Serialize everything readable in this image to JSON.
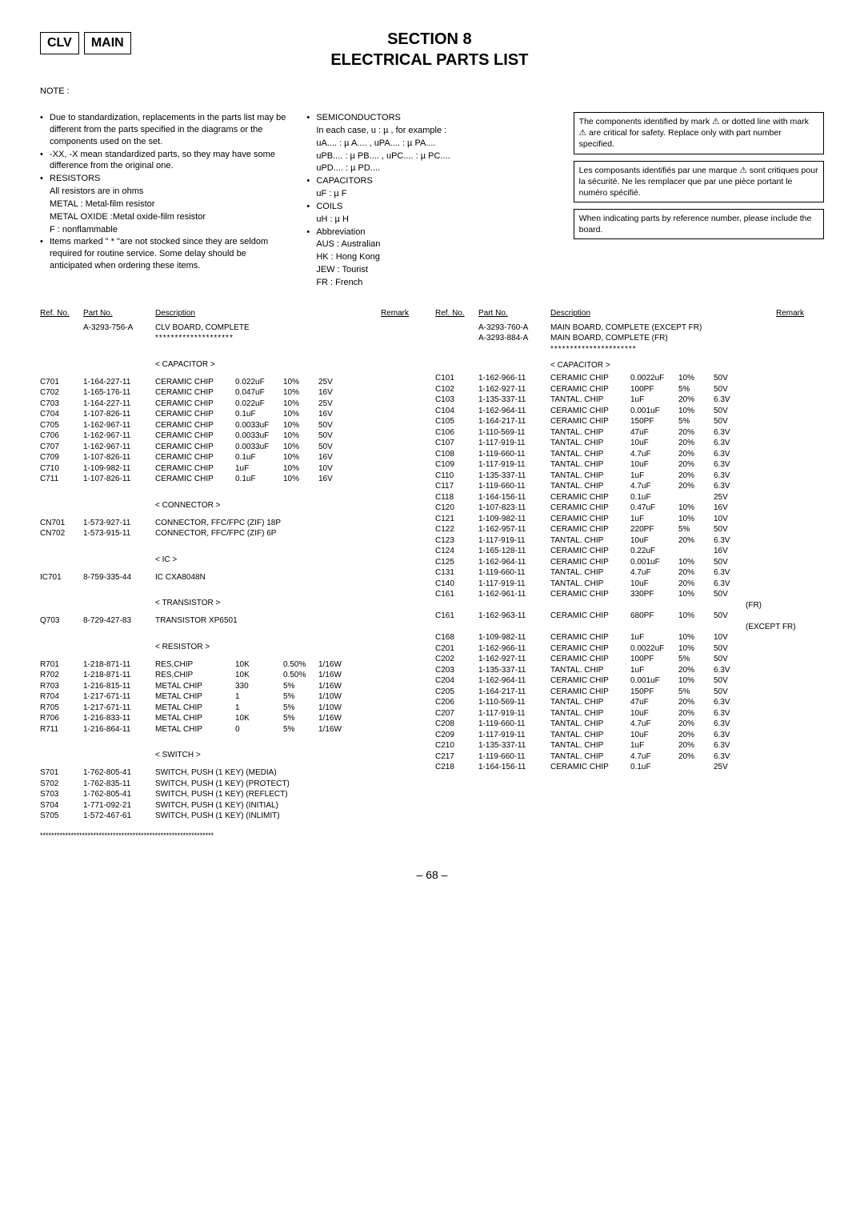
{
  "header": {
    "box1": "CLV",
    "box2": "MAIN",
    "section_line1": "SECTION 8",
    "section_line2": "ELECTRICAL PARTS LIST"
  },
  "notes": {
    "heading": "NOTE :",
    "col1": [
      {
        "bullet": true,
        "text": "Due to standardization, replacements in the parts list may be different from the parts specified in the diagrams or the components used on the set."
      },
      {
        "bullet": true,
        "text": "-XX, -X mean standardized parts, so they may have some difference from the original one."
      },
      {
        "bullet": true,
        "text": "RESISTORS"
      },
      {
        "bullet": false,
        "text": "All resistors are in ohms"
      },
      {
        "bullet": false,
        "text": "METAL : Metal-film resistor"
      },
      {
        "bullet": false,
        "text": "METAL OXIDE :Metal oxide-film resistor"
      },
      {
        "bullet": false,
        "text": "F : nonflammable"
      },
      {
        "bullet": true,
        "text": "Items marked \" * \"are not stocked since they are seldom required for routine service. Some delay should be anticipated when ordering these items."
      }
    ],
    "col2": [
      {
        "bullet": true,
        "text": "SEMICONDUCTORS"
      },
      {
        "bullet": false,
        "text": "In each case, u : µ , for example :"
      },
      {
        "bullet": false,
        "text": "uA.... : µ A.... , uPA.... : µ PA...."
      },
      {
        "bullet": false,
        "text": "uPB.... : µ PB.... , uPC.... : µ PC...."
      },
      {
        "bullet": false,
        "text": "uPD.... : µ PD...."
      },
      {
        "bullet": true,
        "text": "CAPACITORS"
      },
      {
        "bullet": false,
        "text": "uF : µ F"
      },
      {
        "bullet": true,
        "text": "COILS"
      },
      {
        "bullet": false,
        "text": "uH : µ H"
      },
      {
        "bullet": true,
        "text": "Abbreviation"
      },
      {
        "bullet": false,
        "text": "AUS    : Australian"
      },
      {
        "bullet": false,
        "text": "HK       : Hong Kong"
      },
      {
        "bullet": false,
        "text": "JEW    : Tourist"
      },
      {
        "bullet": false,
        "text": "FR        : French"
      }
    ],
    "boxes": [
      "The components identified by mark ⚠ or dotted line with mark ⚠ are critical for safety.\nReplace only with part number specified.",
      "Les composants identifiés par une marque ⚠ sont critiques pour la sécurité. Ne les remplacer que par une pièce portant le numéro spécifié.",
      "When indicating parts by reference number, please include the board."
    ]
  },
  "headers": {
    "ref": "Ref. No.",
    "part": "Part No.",
    "desc": "Description",
    "remark": "Remark"
  },
  "left": {
    "board_pn": "A-3293-756-A",
    "board_desc": "CLV BOARD, COMPLETE",
    "stars": "********************",
    "sections": [
      {
        "label": "< CAPACITOR >",
        "rows": [
          [
            "C701",
            "1-164-227-11",
            "CERAMIC CHIP",
            "0.022uF",
            "10%",
            "25V",
            ""
          ],
          [
            "C702",
            "1-165-176-11",
            "CERAMIC CHIP",
            "0.047uF",
            "10%",
            "16V",
            ""
          ],
          [
            "C703",
            "1-164-227-11",
            "CERAMIC CHIP",
            "0.022uF",
            "10%",
            "25V",
            ""
          ],
          [
            "C704",
            "1-107-826-11",
            "CERAMIC CHIP",
            "0.1uF",
            "10%",
            "16V",
            ""
          ],
          [
            "C705",
            "1-162-967-11",
            "CERAMIC CHIP",
            "0.0033uF",
            "10%",
            "50V",
            ""
          ],
          [
            "",
            "",
            "",
            "",
            "",
            "",
            ""
          ],
          [
            "C706",
            "1-162-967-11",
            "CERAMIC CHIP",
            "0.0033uF",
            "10%",
            "50V",
            ""
          ],
          [
            "C707",
            "1-162-967-11",
            "CERAMIC CHIP",
            "0.0033uF",
            "10%",
            "50V",
            ""
          ],
          [
            "C709",
            "1-107-826-11",
            "CERAMIC CHIP",
            "0.1uF",
            "10%",
            "16V",
            ""
          ],
          [
            "C710",
            "1-109-982-11",
            "CERAMIC CHIP",
            "1uF",
            "10%",
            "10V",
            ""
          ],
          [
            "C711",
            "1-107-826-11",
            "CERAMIC CHIP",
            "0.1uF",
            "10%",
            "16V",
            ""
          ]
        ]
      },
      {
        "label": "< CONNECTOR >",
        "rows": [
          [
            "CN701",
            "1-573-927-11",
            "CONNECTOR, FFC/FPC (ZIF) 18P",
            "",
            "",
            "",
            ""
          ],
          [
            "CN702",
            "1-573-915-11",
            "CONNECTOR, FFC/FPC (ZIF) 6P",
            "",
            "",
            "",
            ""
          ]
        ]
      },
      {
        "label": "< IC >",
        "rows": [
          [
            "IC701",
            "8-759-335-44",
            "IC  CXA8048N",
            "",
            "",
            "",
            ""
          ]
        ]
      },
      {
        "label": "< TRANSISTOR >",
        "rows": [
          [
            "Q703",
            "8-729-427-83",
            "TRANSISTOR  XP6501",
            "",
            "",
            "",
            ""
          ]
        ]
      },
      {
        "label": "< RESISTOR >",
        "rows": [
          [
            "R701",
            "1-218-871-11",
            "RES,CHIP",
            "10K",
            "0.50%",
            "1/16W",
            ""
          ],
          [
            "R702",
            "1-218-871-11",
            "RES,CHIP",
            "10K",
            "0.50%",
            "1/16W",
            ""
          ],
          [
            "R703",
            "1-216-815-11",
            "METAL CHIP",
            "330",
            "5%",
            "1/16W",
            ""
          ],
          [
            "R704",
            "1-217-671-11",
            "METAL CHIP",
            "1",
            "5%",
            "1/10W",
            ""
          ],
          [
            "R705",
            "1-217-671-11",
            "METAL CHIP",
            "1",
            "5%",
            "1/10W",
            ""
          ],
          [
            "",
            "",
            "",
            "",
            "",
            "",
            ""
          ],
          [
            "R706",
            "1-216-833-11",
            "METAL CHIP",
            "10K",
            "5%",
            "1/16W",
            ""
          ],
          [
            "R711",
            "1-216-864-11",
            "METAL CHIP",
            "0",
            "5%",
            "1/16W",
            ""
          ]
        ]
      },
      {
        "label": "< SWITCH >",
        "rows": [
          [
            "S701",
            "1-762-805-41",
            "SWITCH, PUSH (1 KEY) (MEDIA)",
            "",
            "",
            "",
            ""
          ],
          [
            "S702",
            "1-762-835-11",
            "SWITCH, PUSH (1 KEY) (PROTECT)",
            "",
            "",
            "",
            ""
          ],
          [
            "S703",
            "1-762-805-41",
            "SWITCH, PUSH (1 KEY) (REFLECT)",
            "",
            "",
            "",
            ""
          ],
          [
            "S704",
            "1-771-092-21",
            "SWITCH, PUSH (1 KEY) (INITIAL)",
            "",
            "",
            "",
            ""
          ],
          [
            "S705",
            "1-572-467-61",
            "SWITCH, PUSH (1 KEY) (INLIMIT)",
            "",
            "",
            "",
            ""
          ]
        ]
      }
    ],
    "bottom_stars": "**************************************************************"
  },
  "right": {
    "board1_pn": "A-3293-760-A",
    "board1_desc": "MAIN  BOARD, COMPLETE (EXCEPT FR)",
    "board2_pn": "A-3293-884-A",
    "board2_desc": "MAIN  BOARD, COMPLETE (FR)",
    "stars": "**********************",
    "section_label": "< CAPACITOR >",
    "rows": [
      [
        "C101",
        "1-162-966-11",
        "CERAMIC CHIP",
        "0.0022uF",
        "10%",
        "50V",
        ""
      ],
      [
        "C102",
        "1-162-927-11",
        "CERAMIC CHIP",
        "100PF",
        "5%",
        "50V",
        ""
      ],
      [
        "C103",
        "1-135-337-11",
        "TANTAL. CHIP",
        "1uF",
        "20%",
        "6.3V",
        ""
      ],
      [
        "C104",
        "1-162-964-11",
        "CERAMIC CHIP",
        "0.001uF",
        "10%",
        "50V",
        ""
      ],
      [
        "C105",
        "1-164-217-11",
        "CERAMIC CHIP",
        "150PF",
        "5%",
        "50V",
        ""
      ],
      [
        "",
        "",
        "",
        "",
        "",
        "",
        ""
      ],
      [
        "C106",
        "1-110-569-11",
        "TANTAL. CHIP",
        "47uF",
        "20%",
        "6.3V",
        ""
      ],
      [
        "C107",
        "1-117-919-11",
        "TANTAL. CHIP",
        "10uF",
        "20%",
        "6.3V",
        ""
      ],
      [
        "C108",
        "1-119-660-11",
        "TANTAL. CHIP",
        "4.7uF",
        "20%",
        "6.3V",
        ""
      ],
      [
        "C109",
        "1-117-919-11",
        "TANTAL. CHIP",
        "10uF",
        "20%",
        "6.3V",
        ""
      ],
      [
        "C110",
        "1-135-337-11",
        "TANTAL. CHIP",
        "1uF",
        "20%",
        "6.3V",
        ""
      ],
      [
        "",
        "",
        "",
        "",
        "",
        "",
        ""
      ],
      [
        "C117",
        "1-119-660-11",
        "TANTAL. CHIP",
        "4.7uF",
        "20%",
        "6.3V",
        ""
      ],
      [
        "C118",
        "1-164-156-11",
        "CERAMIC CHIP",
        "0.1uF",
        "",
        "25V",
        ""
      ],
      [
        "C120",
        "1-107-823-11",
        "CERAMIC CHIP",
        "0.47uF",
        "10%",
        "16V",
        ""
      ],
      [
        "C121",
        "1-109-982-11",
        "CERAMIC CHIP",
        "1uF",
        "10%",
        "10V",
        ""
      ],
      [
        "C122",
        "1-162-957-11",
        "CERAMIC CHIP",
        "220PF",
        "5%",
        "50V",
        ""
      ],
      [
        "",
        "",
        "",
        "",
        "",
        "",
        ""
      ],
      [
        "C123",
        "1-117-919-11",
        "TANTAL. CHIP",
        "10uF",
        "20%",
        "6.3V",
        ""
      ],
      [
        "C124",
        "1-165-128-11",
        "CERAMIC CHIP",
        "0.22uF",
        "",
        "16V",
        ""
      ],
      [
        "C125",
        "1-162-964-11",
        "CERAMIC CHIP",
        "0.001uF",
        "10%",
        "50V",
        ""
      ],
      [
        "C131",
        "1-119-660-11",
        "TANTAL. CHIP",
        "4.7uF",
        "20%",
        "6.3V",
        ""
      ],
      [
        "C140",
        "1-117-919-11",
        "TANTAL. CHIP",
        "10uF",
        "20%",
        "6.3V",
        ""
      ],
      [
        "",
        "",
        "",
        "",
        "",
        "",
        ""
      ],
      [
        "C161",
        "1-162-961-11",
        "CERAMIC CHIP",
        "330PF",
        "10%",
        "50V",
        ""
      ],
      [
        "",
        "",
        "",
        "",
        "",
        "",
        "(FR)"
      ],
      [
        "C161",
        "1-162-963-11",
        "CERAMIC CHIP",
        "680PF",
        "10%",
        "50V",
        ""
      ],
      [
        "",
        "",
        "",
        "",
        "",
        "",
        "(EXCEPT FR)"
      ],
      [
        "C168",
        "1-109-982-11",
        "CERAMIC CHIP",
        "1uF",
        "10%",
        "10V",
        ""
      ],
      [
        "C201",
        "1-162-966-11",
        "CERAMIC CHIP",
        "0.0022uF",
        "10%",
        "50V",
        ""
      ],
      [
        "C202",
        "1-162-927-11",
        "CERAMIC CHIP",
        "100PF",
        "5%",
        "50V",
        ""
      ],
      [
        "",
        "",
        "",
        "",
        "",
        "",
        ""
      ],
      [
        "C203",
        "1-135-337-11",
        "TANTAL. CHIP",
        "1uF",
        "20%",
        "6.3V",
        ""
      ],
      [
        "C204",
        "1-162-964-11",
        "CERAMIC CHIP",
        "0.001uF",
        "10%",
        "50V",
        ""
      ],
      [
        "C205",
        "1-164-217-11",
        "CERAMIC CHIP",
        "150PF",
        "5%",
        "50V",
        ""
      ],
      [
        "C206",
        "1-110-569-11",
        "TANTAL. CHIP",
        "47uF",
        "20%",
        "6.3V",
        ""
      ],
      [
        "C207",
        "1-117-919-11",
        "TANTAL. CHIP",
        "10uF",
        "20%",
        "6.3V",
        ""
      ],
      [
        "",
        "",
        "",
        "",
        "",
        "",
        ""
      ],
      [
        "C208",
        "1-119-660-11",
        "TANTAL. CHIP",
        "4.7uF",
        "20%",
        "6.3V",
        ""
      ],
      [
        "C209",
        "1-117-919-11",
        "TANTAL. CHIP",
        "10uF",
        "20%",
        "6.3V",
        ""
      ],
      [
        "C210",
        "1-135-337-11",
        "TANTAL. CHIP",
        "1uF",
        "20%",
        "6.3V",
        ""
      ],
      [
        "C217",
        "1-119-660-11",
        "TANTAL. CHIP",
        "4.7uF",
        "20%",
        "6.3V",
        ""
      ],
      [
        "C218",
        "1-164-156-11",
        "CERAMIC CHIP",
        "0.1uF",
        "",
        "25V",
        ""
      ]
    ]
  },
  "page": "– 68 –"
}
